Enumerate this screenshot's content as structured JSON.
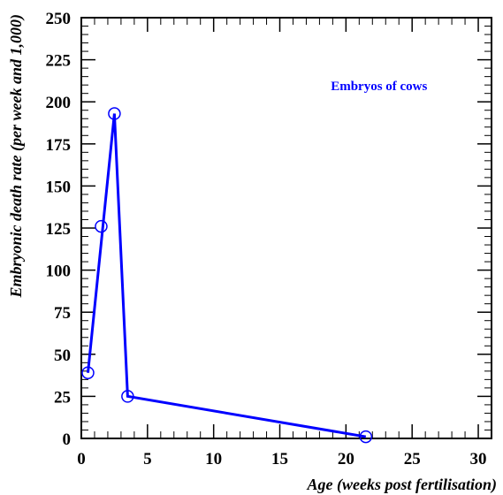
{
  "chart_data": {
    "type": "line",
    "title": "",
    "xlabel": "Age (weeks post fertilisation)",
    "ylabel": "Embryonic death rate (per week and 1,000)",
    "xlim": [
      0,
      31
    ],
    "ylim": [
      0,
      250
    ],
    "xticks": [
      0,
      5,
      10,
      15,
      20,
      25,
      30
    ],
    "yticks": [
      0,
      25,
      50,
      75,
      100,
      125,
      150,
      175,
      200,
      225,
      250
    ],
    "x_minor_step": 1,
    "y_minor_step": 5,
    "grid": false,
    "annotation": {
      "text": "Embryos of cows",
      "color": "#0000ff"
    },
    "series": [
      {
        "color": "#0000ff",
        "points": [
          {
            "x": 0.5,
            "y": 39
          },
          {
            "x": 1.5,
            "y": 126
          },
          {
            "x": 2.5,
            "y": 193
          },
          {
            "x": 3.5,
            "y": 25
          },
          {
            "x": 21.5,
            "y": 1
          }
        ],
        "line_through": [
          {
            "x": 0.5,
            "y": 39
          },
          {
            "x": 2.5,
            "y": 193
          },
          {
            "x": 3.5,
            "y": 25
          },
          {
            "x": 21.5,
            "y": 1
          }
        ]
      }
    ]
  }
}
